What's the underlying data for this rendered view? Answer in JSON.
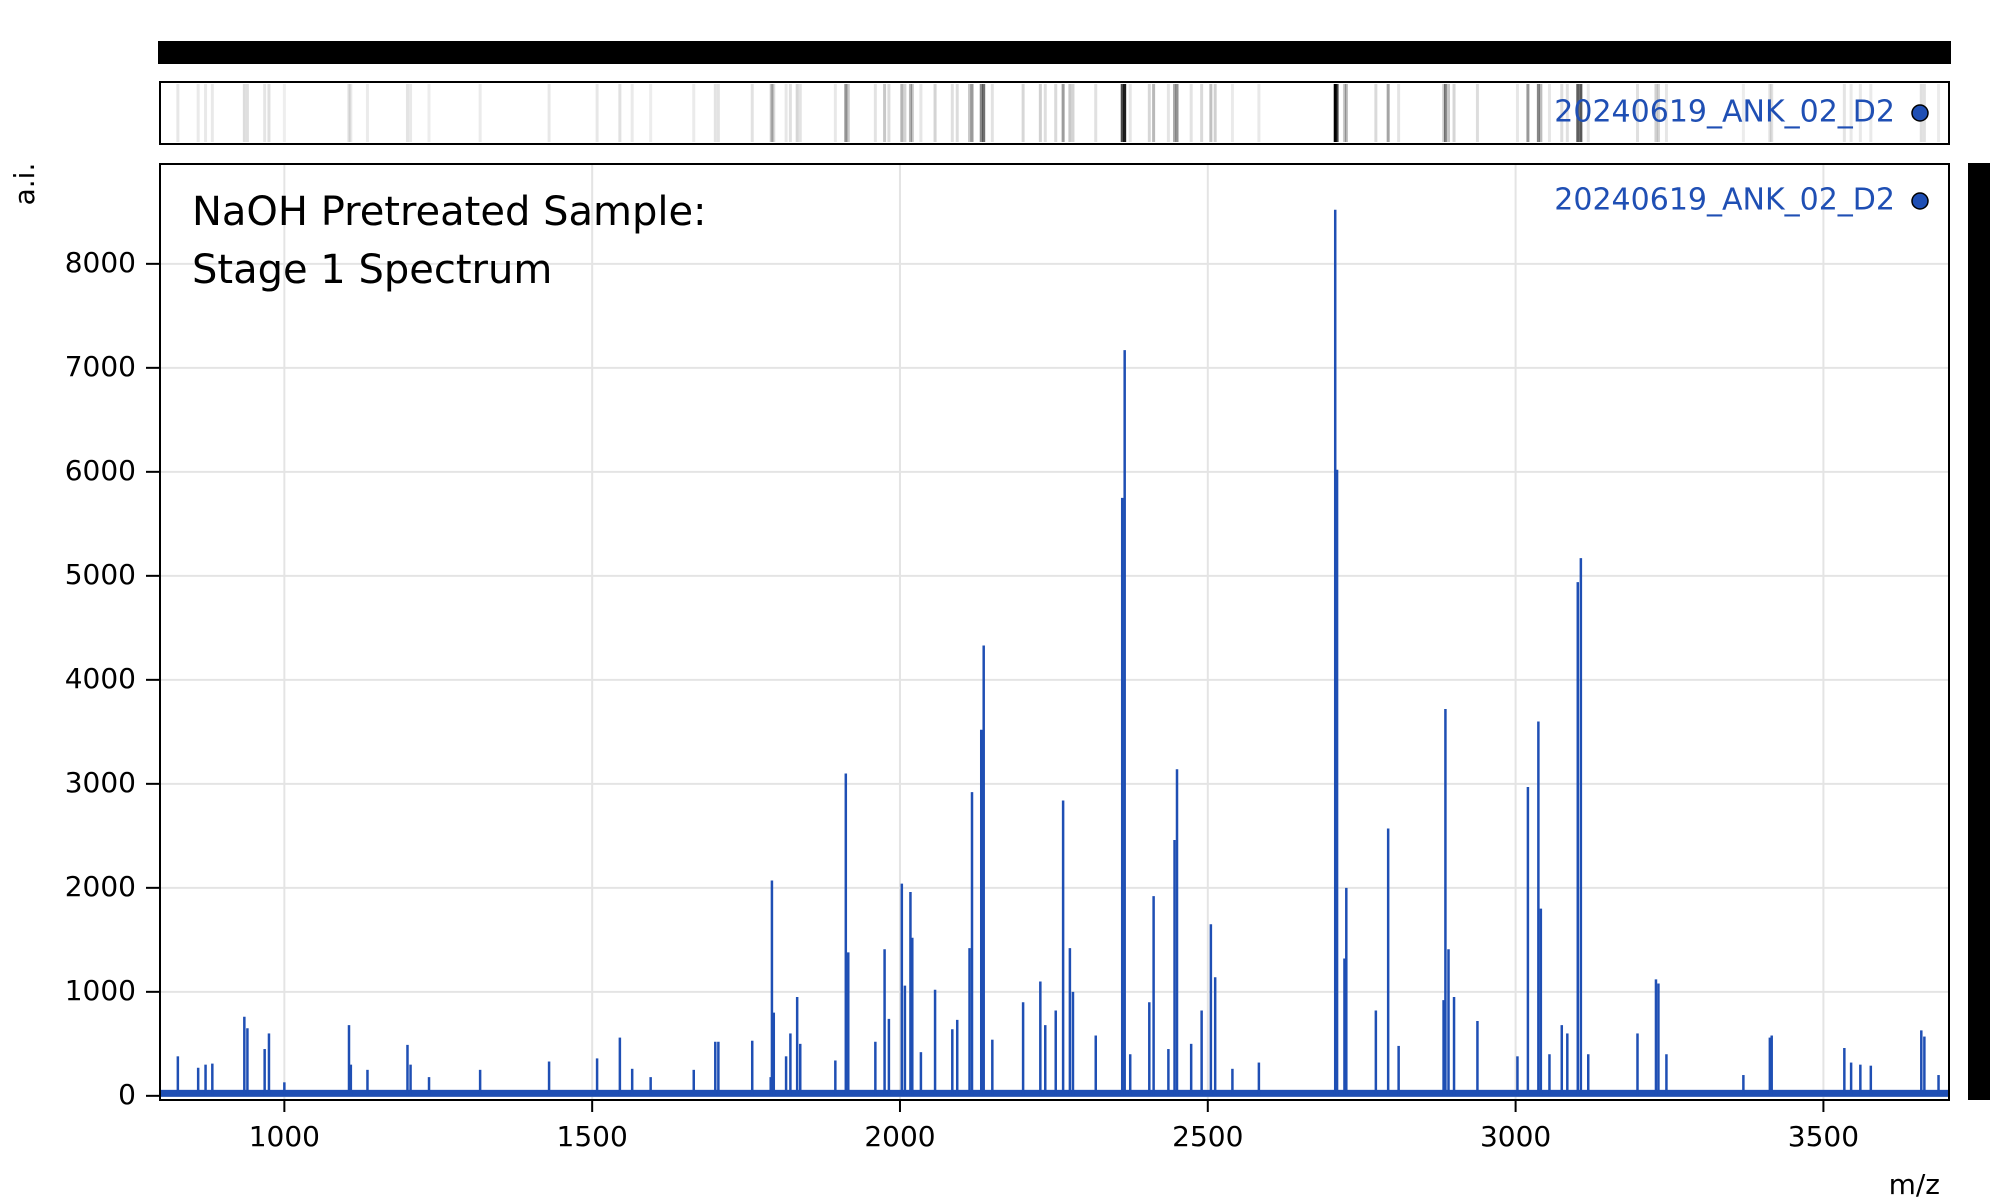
{
  "chart_data": {
    "type": "spectrum",
    "annotation": [
      "NaOH Pretreated Sample:",
      "Stage 1 Spectrum"
    ],
    "y_label": "a.i.",
    "x_label": "m/z",
    "xlim": [
      798,
      3704
    ],
    "ylim": [
      -40,
      8960
    ],
    "xticks": [
      1000,
      1500,
      2000,
      2500,
      3000,
      3500
    ],
    "yticks": [
      0,
      1000,
      2000,
      3000,
      4000,
      5000,
      6000,
      7000,
      8000
    ],
    "grid": true,
    "x": [
      827,
      860,
      872,
      883,
      935,
      940,
      968,
      975,
      1000,
      1105,
      1108,
      1135,
      1200,
      1205,
      1235,
      1318,
      1430,
      1508,
      1545,
      1565,
      1595,
      1665,
      1700,
      1705,
      1760,
      1790,
      1792,
      1795,
      1815,
      1822,
      1833,
      1838,
      1895,
      1912,
      1916,
      1960,
      1975,
      1982,
      2003,
      2008,
      2017,
      2020,
      2034,
      2057,
      2085,
      2093,
      2113,
      2117,
      2132,
      2136,
      2150,
      2200,
      2228,
      2236,
      2253,
      2265,
      2276,
      2281,
      2318,
      2361,
      2365,
      2374,
      2405,
      2412,
      2436,
      2446,
      2450,
      2473,
      2490,
      2505,
      2512,
      2540,
      2583,
      2707,
      2710,
      2722,
      2725,
      2773,
      2793,
      2810,
      2883,
      2886,
      2891,
      2900,
      2938,
      3003,
      3020,
      3037,
      3041,
      3055,
      3075,
      3084,
      3101,
      3106,
      3118,
      3198,
      3228,
      3232,
      3245,
      3370,
      3413,
      3416,
      3534,
      3545,
      3560,
      3577,
      3659,
      3664,
      3687
    ],
    "series": [
      {
        "name": "20240619_ANK_02_D2",
        "color": "#1f4fb4",
        "values": [
          380,
          270,
          300,
          310,
          760,
          650,
          450,
          600,
          130,
          680,
          300,
          250,
          490,
          300,
          180,
          250,
          330,
          360,
          560,
          260,
          180,
          250,
          520,
          520,
          530,
          180,
          2070,
          800,
          380,
          600,
          950,
          500,
          340,
          3100,
          1380,
          520,
          1410,
          740,
          2040,
          1060,
          1960,
          1520,
          420,
          1020,
          640,
          730,
          1420,
          2920,
          3520,
          4330,
          540,
          900,
          1100,
          680,
          820,
          2840,
          1420,
          1000,
          580,
          5750,
          7170,
          400,
          900,
          1920,
          450,
          2460,
          3140,
          500,
          820,
          1650,
          1140,
          260,
          320,
          8520,
          6020,
          1320,
          2000,
          820,
          2570,
          480,
          920,
          3720,
          1410,
          950,
          720,
          380,
          2970,
          3600,
          1800,
          400,
          680,
          600,
          4940,
          5170,
          400,
          600,
          1120,
          1080,
          400,
          200,
          560,
          580,
          460,
          320,
          300,
          290,
          630,
          570,
          200
        ]
      }
    ]
  }
}
